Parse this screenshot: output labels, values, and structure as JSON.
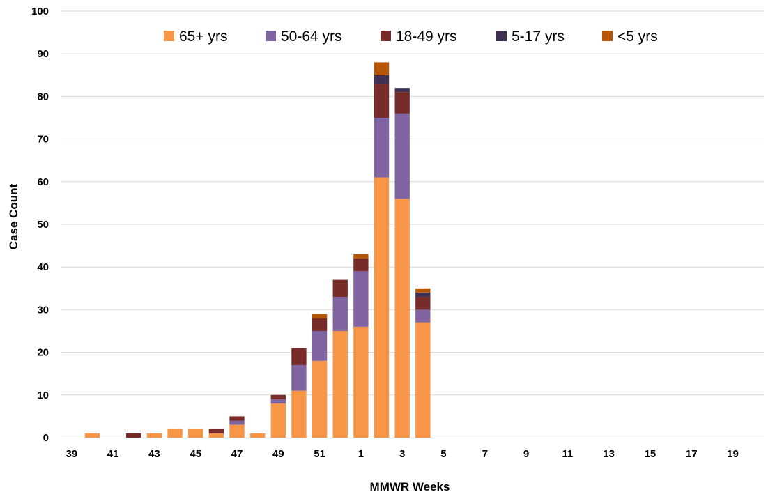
{
  "chart_data": {
    "type": "bar",
    "stacked": true,
    "xlabel": "MMWR Weeks",
    "ylabel": "Case Count",
    "ylim": [
      0,
      100
    ],
    "yticks": [
      0,
      10,
      20,
      30,
      40,
      50,
      60,
      70,
      80,
      90,
      100
    ],
    "grid": true,
    "legend_position": "top",
    "categories": [
      "39",
      "40",
      "41",
      "42",
      "43",
      "44",
      "45",
      "46",
      "47",
      "48",
      "49",
      "50",
      "51",
      "52",
      "1",
      "2",
      "3",
      "4",
      "5",
      "6",
      "7",
      "8",
      "9",
      "10",
      "11",
      "12",
      "13",
      "14",
      "15",
      "16",
      "17",
      "18",
      "19",
      "20"
    ],
    "x_tick_labels": [
      "39",
      "41",
      "43",
      "45",
      "47",
      "49",
      "51",
      "1",
      "3",
      "5",
      "7",
      "9",
      "11",
      "13",
      "15",
      "17",
      "19"
    ],
    "series": [
      {
        "name": "65+ yrs",
        "color": "#F79646",
        "values": [
          0,
          1,
          0,
          0,
          1,
          2,
          2,
          1,
          3,
          1,
          8,
          11,
          18,
          25,
          26,
          61,
          56,
          27,
          0,
          0,
          0,
          0,
          0,
          0,
          0,
          0,
          0,
          0,
          0,
          0,
          0,
          0,
          0,
          0
        ]
      },
      {
        "name": "50-64 yrs",
        "color": "#8064A2",
        "values": [
          0,
          0,
          0,
          0,
          0,
          0,
          0,
          0,
          1,
          0,
          1,
          6,
          7,
          8,
          13,
          14,
          20,
          3,
          0,
          0,
          0,
          0,
          0,
          0,
          0,
          0,
          0,
          0,
          0,
          0,
          0,
          0,
          0,
          0
        ]
      },
      {
        "name": "18-49 yrs",
        "color": "#772C2A",
        "values": [
          0,
          0,
          0,
          1,
          0,
          0,
          0,
          1,
          1,
          0,
          1,
          4,
          3,
          4,
          3,
          8,
          5,
          3,
          0,
          0,
          0,
          0,
          0,
          0,
          0,
          0,
          0,
          0,
          0,
          0,
          0,
          0,
          0,
          0
        ]
      },
      {
        "name": "5-17 yrs",
        "color": "#403152",
        "values": [
          0,
          0,
          0,
          0,
          0,
          0,
          0,
          0,
          0,
          0,
          0,
          0,
          0,
          0,
          0,
          2,
          1,
          1,
          0,
          0,
          0,
          0,
          0,
          0,
          0,
          0,
          0,
          0,
          0,
          0,
          0,
          0,
          0,
          0
        ]
      },
      {
        "name": "<5 yrs",
        "color": "#B65708",
        "values": [
          0,
          0,
          0,
          0,
          0,
          0,
          0,
          0,
          0,
          0,
          0,
          0,
          1,
          0,
          1,
          3,
          0,
          1,
          0,
          0,
          0,
          0,
          0,
          0,
          0,
          0,
          0,
          0,
          0,
          0,
          0,
          0,
          0,
          0
        ]
      }
    ]
  }
}
